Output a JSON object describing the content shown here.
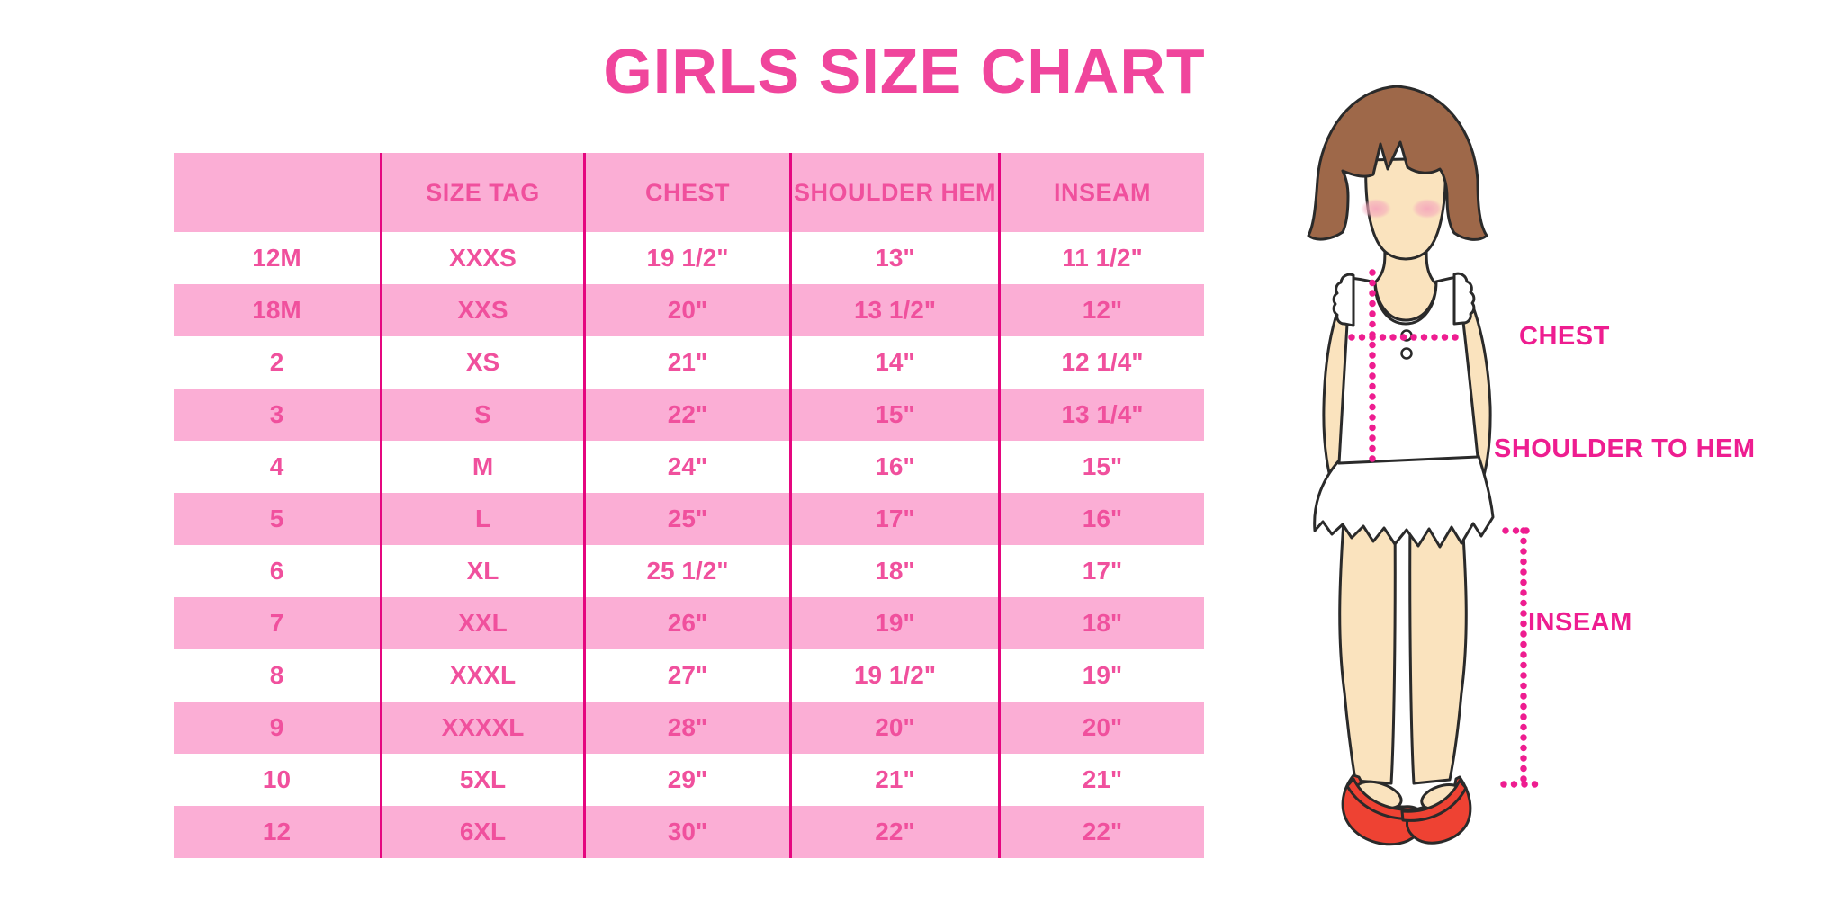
{
  "colors": {
    "title_pink": "#F0459C",
    "table_text_pink": "#F0509D",
    "row_pink": "#FBAED5",
    "divider_magenta": "#E5067F",
    "label_magenta": "#EE1D90",
    "hair_brown": "#9E6849",
    "skin": "#FAE3BE",
    "shoe_red": "#EE4233",
    "outline": "#2A2A2A",
    "garment_white": "#FFFFFF"
  },
  "chart_data": {
    "type": "table",
    "title": "GIRLS SIZE CHART",
    "columns": [
      "",
      "SIZE TAG",
      "CHEST",
      "SHOULDER HEM",
      "INSEAM"
    ],
    "rows": [
      [
        "12M",
        "XXXS",
        "19 1/2\"",
        "13\"",
        "11 1/2\""
      ],
      [
        "18M",
        "XXS",
        "20\"",
        "13 1/2\"",
        "12\""
      ],
      [
        "2",
        "XS",
        "21\"",
        "14\"",
        "12 1/4\""
      ],
      [
        "3",
        "S",
        "22\"",
        "15\"",
        "13 1/4\""
      ],
      [
        "4",
        "M",
        "24\"",
        "16\"",
        "15\""
      ],
      [
        "5",
        "L",
        "25\"",
        "17\"",
        "16\""
      ],
      [
        "6",
        "XL",
        "25 1/2\"",
        "18\"",
        "17\""
      ],
      [
        "7",
        "XXL",
        "26\"",
        "19\"",
        "18\""
      ],
      [
        "8",
        "XXXL",
        "27\"",
        "19 1/2\"",
        "19\""
      ],
      [
        "9",
        "XXXXL",
        "28\"",
        "20\"",
        "20\""
      ],
      [
        "10",
        "5XL",
        "29\"",
        "21\"",
        "21\""
      ],
      [
        "12",
        "6XL",
        "30\"",
        "22\"",
        "22\""
      ]
    ],
    "layout": {
      "striped": true,
      "stripe_colors": [
        "#FFFFFF",
        "#FBAED5"
      ],
      "header_background": "#FBAED5",
      "column_dividers": true,
      "legend_position": "none",
      "grid": "vertical-only"
    }
  },
  "figure": {
    "labels": {
      "chest": "CHEST",
      "shoulder_to_hem": "SHOULDER TO HEM",
      "inseam": "INSEAM"
    }
  }
}
